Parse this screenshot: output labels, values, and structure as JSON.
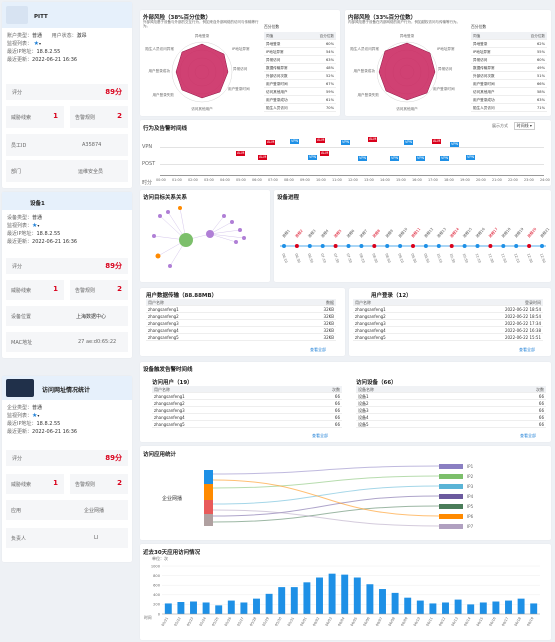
{
  "person": {
    "name": "PITT",
    "type_label": "账户类型：",
    "type_value": "普通",
    "status_label": "用户状态：",
    "status_value": "激昂",
    "monitor_label": "监视列表：",
    "ip_label": "最近IP地址：",
    "ip_value": "18.8.2.55",
    "update_label": "最近更新：",
    "update_value": "2022-06-21 16:36",
    "score_label": "评分",
    "score_value": "89分",
    "threat_label": "威胁线索",
    "threat_value": "1",
    "alarm_label": "告警规则",
    "alarm_value": "2",
    "emp_label": "员工ID",
    "emp_value": "A35874",
    "dept_label": "部门",
    "dept_value": "运维安全员"
  },
  "device": {
    "name": "设备1",
    "type_label": "设备类型：",
    "type_value": "普通",
    "monitor_label": "监视列表：",
    "ip_label": "最近IP地址：",
    "ip_value": "18.8.2.55",
    "update_label": "最近更新：",
    "update_value": "2022-06-21 16:36",
    "score_label": "评分",
    "score_value": "89分",
    "threat_label": "威胁线索",
    "threat_value": "1",
    "alarm_label": "告警规则",
    "alarm_value": "2",
    "location_label": "设备位置",
    "location_value": "上海数据中心",
    "mac_label": "MAC地址",
    "mac_value": "27 ae:d0:65:22"
  },
  "site": {
    "name": "访问网址情况统计",
    "type_label": "企业类型：",
    "type_value": "普通",
    "monitor_label": "监视列表：",
    "ip_label": "最近IP地址：",
    "ip_value": "18.8.2.55",
    "update_label": "最近更新：",
    "update_value": "2022-06-21 16:36",
    "score_label": "评分",
    "score_value": "89分",
    "threat_label": "威胁线索",
    "threat_value": "1",
    "alarm_label": "告警规则",
    "alarm_value": "2",
    "app_label": "应用",
    "app_value": "企业网播",
    "owner_label": "负责人",
    "owner_value": "LI"
  },
  "risk_ext": {
    "title": "外部风险（38%百分位数）",
    "desc": "外部风险基于设备与外部的交互行为，例如来自外部网络的访问与传输等行为。",
    "legend_label": "百分位数",
    "radar_labels": [
      "异地登录",
      "IP地址异常",
      "异常访问",
      "用户登录时间",
      "访问其他用户",
      "用户登录失败",
      "用户登录成功",
      "陌生人员访问异常"
    ],
    "rows": [
      [
        "同值",
        "百分位数"
      ],
      [
        "异地登录",
        "60%"
      ],
      [
        "IP地址异常",
        "54%"
      ],
      [
        "异常访问",
        "63%"
      ],
      [
        "数据传输异常",
        "48%"
      ],
      [
        "外部访问次数",
        "52%"
      ],
      [
        "用户登录时间",
        "67%"
      ],
      [
        "访问其他用户",
        "59%"
      ],
      [
        "用户登录成功",
        "61%"
      ],
      [
        "陌生人员访问",
        "70%"
      ]
    ]
  },
  "risk_int": {
    "title": "内部风险（33%百分位数）",
    "desc": "内部风险基于设备在内部网络的用户行为，例如越权访问与传输等行为。",
    "legend_label": "百分位数",
    "radar_labels": [
      "异地登录",
      "IP地址异常",
      "异常访问",
      "用户登录时间",
      "访问其他用户",
      "用户登录失败",
      "用户登录成功",
      "陌生人员访问异常"
    ],
    "rows": [
      [
        "同值",
        "百分位数"
      ],
      [
        "异地登录",
        "62%"
      ],
      [
        "IP地址异常",
        "55%"
      ],
      [
        "异常访问",
        "60%"
      ],
      [
        "数据传输异常",
        "49%"
      ],
      [
        "外部访问次数",
        "51%"
      ],
      [
        "用户登录时间",
        "66%"
      ],
      [
        "访问其他用户",
        "58%"
      ],
      [
        "用户登录成功",
        "63%"
      ],
      [
        "陌生人员访问",
        "71%"
      ]
    ]
  },
  "timeline": {
    "title": "行为及告警时间线",
    "mode_label": "展示方式",
    "mode_value": "时间线",
    "row1": "VPN",
    "row2": "POST",
    "row3": "时分",
    "ticks": [
      "00:00",
      "01:00",
      "02:00",
      "03:00",
      "04:00",
      "05:00",
      "06:00",
      "07:00",
      "08:00",
      "09:00",
      "10:00",
      "11:00",
      "12:00",
      "13:00",
      "14:00",
      "15:00",
      "16:00",
      "17:00",
      "18:00",
      "19:00",
      "20:00",
      "21:00",
      "22:00",
      "23:00",
      "24:00"
    ]
  },
  "graph": {
    "title": "访问目标关系关系"
  },
  "device_process": {
    "title": "设备进程",
    "labels": [
      "进程1",
      "进程2",
      "进程3",
      "进程4",
      "进程5",
      "进程6",
      "进程7",
      "进程8",
      "进程9",
      "进程10",
      "进程11",
      "进程12",
      "进程13",
      "进程14",
      "进程15",
      "进程16",
      "进程17",
      "进程18",
      "进程19",
      "进程20",
      "进程21"
    ],
    "times": [
      "06:10",
      "06:30",
      "06:50",
      "07:10",
      "07:30",
      "07:50",
      "08:10",
      "08:30",
      "08:50",
      "09:10",
      "09:30",
      "09:50",
      "10:10",
      "10:30",
      "10:50",
      "11:10",
      "11:30",
      "11:50",
      "12:10",
      "12:30",
      "12:50"
    ]
  },
  "data_transfer": {
    "title": "用户数据传输（88.88MB）",
    "col1": "用户名称",
    "col2": "数据",
    "rows": [
      [
        "zhangsanfeng1",
        "32KB"
      ],
      [
        "zhangsanfeng2",
        "32KB"
      ],
      [
        "zhangsanfeng3",
        "32KB"
      ],
      [
        "zhangsanfeng4",
        "32KB"
      ],
      [
        "zhangsanfeng5",
        "32KB"
      ]
    ],
    "more": "查看全部"
  },
  "user_login": {
    "title": "用户登录（12）",
    "col1": "用户名称",
    "col2": "登录时间",
    "rows": [
      [
        "zhangsanfeng1",
        "2022-06-22 18:54"
      ],
      [
        "zhangsanfeng2",
        "2022-06-22 18:54"
      ],
      [
        "zhangsanfeng3",
        "2022-06-22 17:34"
      ],
      [
        "zhangsanfeng4",
        "2022-06-22 16:38"
      ],
      [
        "zhangsanfeng5",
        "2022-06-22 15:51"
      ]
    ],
    "more": "查看全部"
  },
  "trigger": {
    "title": "设备触发告警时间线",
    "visits_title": "访问用户（19）",
    "visits_col1": "用户名称",
    "visits_col2": "次数",
    "visits_rows": [
      [
        "zhangsanfeng1",
        "66"
      ],
      [
        "zhangsanfeng2",
        "66"
      ],
      [
        "zhangsanfeng3",
        "66"
      ],
      [
        "zhangsanfeng4",
        "66"
      ],
      [
        "zhangsanfeng5",
        "66"
      ]
    ],
    "devices_title": "访问设备（66）",
    "devices_col1": "设备名称",
    "devices_col2": "次数",
    "devices_rows": [
      [
        "设备1",
        "66"
      ],
      [
        "设备2",
        "66"
      ],
      [
        "设备3",
        "66"
      ],
      [
        "设备4",
        "66"
      ],
      [
        "设备5",
        "66"
      ]
    ],
    "more": "查看全部"
  },
  "app_stats": {
    "title": "访问应用统计",
    "source": "企业网播",
    "targets": [
      "IP1",
      "IP2",
      "IP3",
      "IP4",
      "IP5",
      "IP6",
      "IP7"
    ],
    "colors": [
      "#8a7fc2",
      "#7cbf6b",
      "#5ab4d6",
      "#6b5a9e",
      "#4a7c59",
      "#ff8a00",
      "#b0a0c0"
    ]
  },
  "chart_data": {
    "type": "bar",
    "title": "近去30天应用访问情况",
    "ylabel": "单位：次",
    "ylim": [
      0,
      1000
    ],
    "yticks": [
      0,
      200,
      400,
      600,
      800,
      1000
    ],
    "categories": [
      "05/21",
      "05/22",
      "05/23",
      "05/24",
      "05/25",
      "05/26",
      "05/27",
      "05/28",
      "05/29",
      "05/30",
      "05/31",
      "06/01",
      "06/02",
      "06/03",
      "06/04",
      "06/05",
      "06/06",
      "06/07",
      "06/08",
      "06/09",
      "06/10",
      "06/11",
      "06/12",
      "06/13",
      "06/14",
      "06/15",
      "06/16",
      "06/17",
      "06/18",
      "06/19"
    ],
    "values": [
      220,
      250,
      260,
      240,
      180,
      280,
      240,
      320,
      420,
      560,
      560,
      660,
      760,
      840,
      820,
      760,
      620,
      520,
      440,
      340,
      280,
      220,
      240,
      300,
      200,
      240,
      260,
      280,
      320,
      220
    ],
    "x_name": "时间",
    "bar_color": "#1e90e6"
  }
}
